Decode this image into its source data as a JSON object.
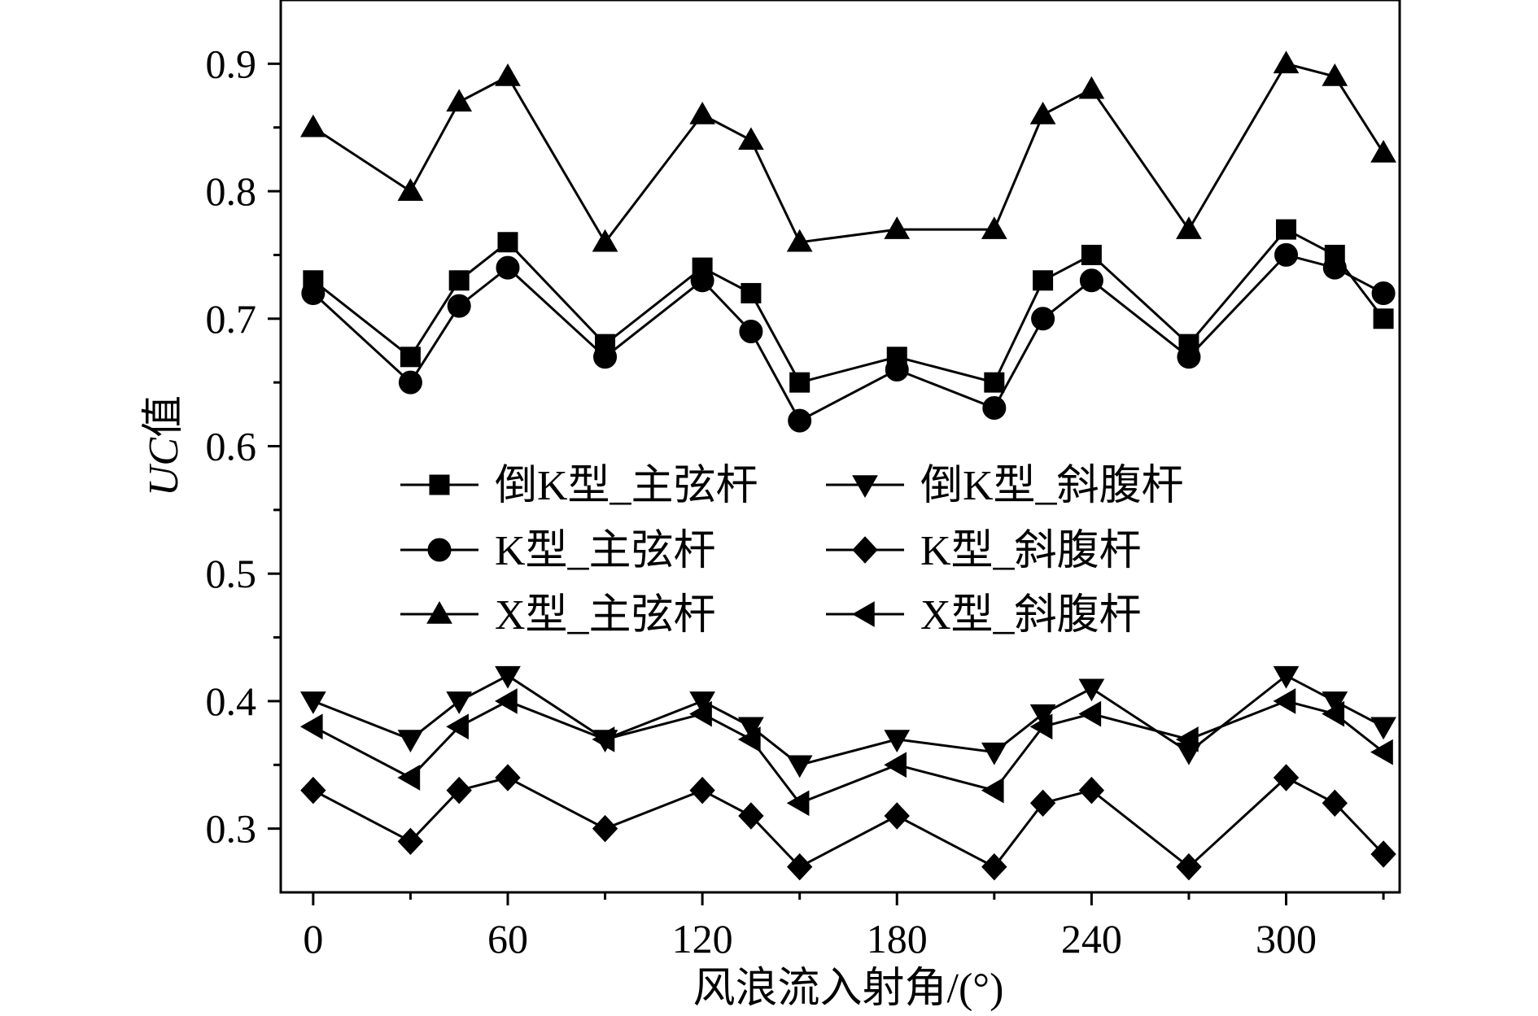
{
  "chart_data": {
    "type": "line",
    "title": "",
    "xlabel": "风浪流入射角/(°)",
    "ylabel_italic": "UC",
    "ylabel_suffix": "值",
    "xlim": [
      -10,
      335
    ],
    "ylim": [
      0.25,
      0.95
    ],
    "xticks": [
      0,
      60,
      120,
      180,
      240,
      300
    ],
    "xtick_labels": [
      "0",
      "60",
      "120",
      "180",
      "240",
      "300"
    ],
    "yticks": [
      0.3,
      0.4,
      0.5,
      0.6,
      0.7,
      0.8,
      0.9
    ],
    "ytick_labels": [
      "0.3",
      "0.4",
      "0.5",
      "0.6",
      "0.7",
      "0.8",
      "0.9"
    ],
    "grid": false,
    "legend_position": "center-left, two columns",
    "x": [
      0,
      30,
      45,
      60,
      90,
      120,
      135,
      150,
      180,
      210,
      225,
      240,
      270,
      300,
      315,
      330
    ],
    "series": [
      {
        "name": "倒K型_主弦杆",
        "marker": "square",
        "values": [
          0.73,
          0.67,
          0.73,
          0.76,
          0.68,
          0.74,
          0.72,
          0.65,
          0.67,
          0.65,
          0.73,
          0.75,
          0.68,
          0.77,
          0.75,
          0.7
        ]
      },
      {
        "name": "K型_主弦杆",
        "marker": "circle",
        "values": [
          0.72,
          0.65,
          0.71,
          0.74,
          0.67,
          0.73,
          0.69,
          0.62,
          0.66,
          0.63,
          0.7,
          0.73,
          0.67,
          0.75,
          0.74,
          0.72
        ]
      },
      {
        "name": "X型_主弦杆",
        "marker": "triangle-up",
        "values": [
          0.85,
          0.8,
          0.87,
          0.89,
          0.76,
          0.86,
          0.84,
          0.76,
          0.77,
          0.77,
          0.86,
          0.88,
          0.77,
          0.9,
          0.89,
          0.83
        ]
      },
      {
        "name": "倒K型_斜腹杆",
        "marker": "triangle-down",
        "values": [
          0.4,
          0.37,
          0.4,
          0.42,
          0.37,
          0.4,
          0.38,
          0.35,
          0.37,
          0.36,
          0.39,
          0.41,
          0.36,
          0.42,
          0.4,
          0.38
        ]
      },
      {
        "name": "K型_斜腹杆",
        "marker": "diamond",
        "values": [
          0.33,
          0.29,
          0.33,
          0.34,
          0.3,
          0.33,
          0.31,
          0.27,
          0.31,
          0.27,
          0.32,
          0.33,
          0.27,
          0.34,
          0.32,
          0.28
        ]
      },
      {
        "name": "X型_斜腹杆",
        "marker": "triangle-left",
        "values": [
          0.38,
          0.34,
          0.38,
          0.4,
          0.37,
          0.39,
          0.37,
          0.32,
          0.35,
          0.33,
          0.38,
          0.39,
          0.37,
          0.4,
          0.39,
          0.36
        ]
      }
    ]
  }
}
